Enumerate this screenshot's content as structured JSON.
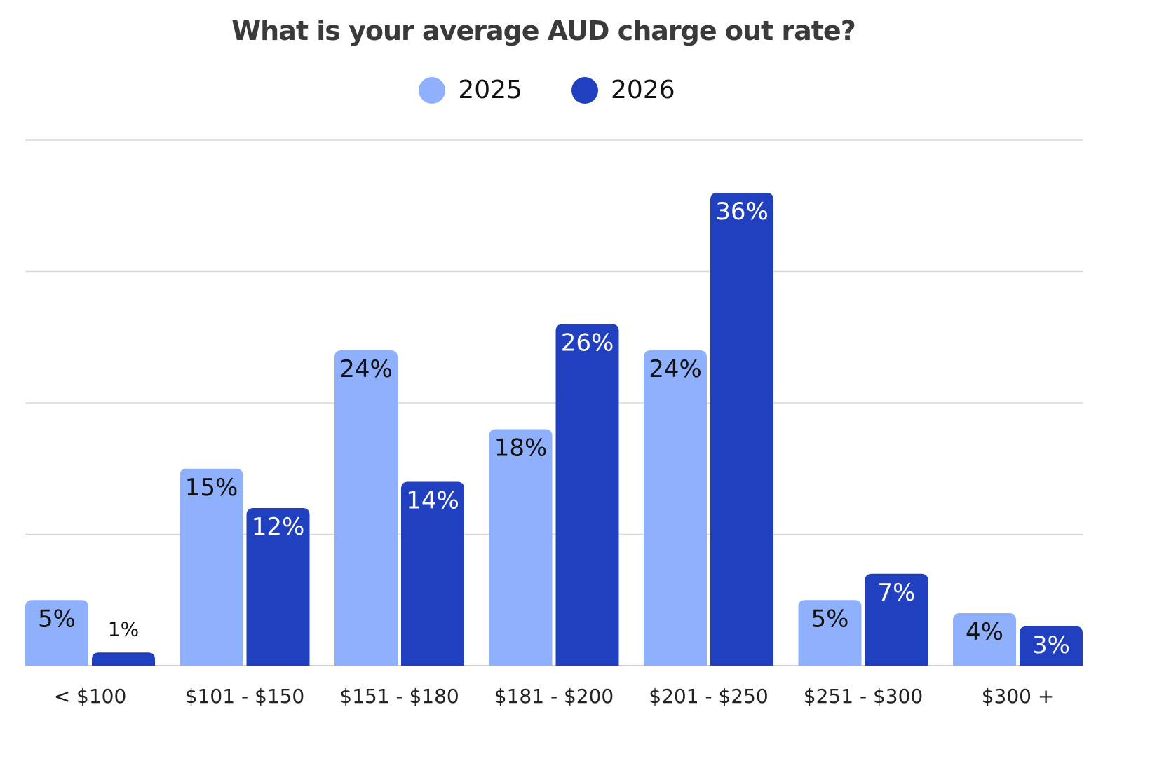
{
  "chart_data": {
    "type": "bar",
    "title": "What is your average AUD charge out rate?",
    "xlabel": "",
    "ylabel": "",
    "ylim": [
      0,
      40
    ],
    "grid": true,
    "legend_position": "top-center",
    "categories": [
      "< $100",
      "$101 - $150",
      "$151 - $180",
      "$181 - $200",
      "$201 - $250",
      "$251 - $300",
      "$300 +"
    ],
    "series": [
      {
        "name": "2025",
        "color": "#8fb1fd",
        "label_color": "#111111",
        "values": [
          5,
          15,
          24,
          18,
          24,
          5,
          4
        ],
        "labels": [
          "5%",
          "15%",
          "24%",
          "18%",
          "24%",
          "5%",
          "4%"
        ]
      },
      {
        "name": "2026",
        "color": "#2140c0",
        "label_color": "#ffffff",
        "values": [
          1,
          12,
          14,
          26,
          36,
          7,
          3
        ],
        "labels": [
          "1%",
          "12%",
          "14%",
          "26%",
          "36%",
          "7%",
          "3%"
        ]
      }
    ]
  }
}
